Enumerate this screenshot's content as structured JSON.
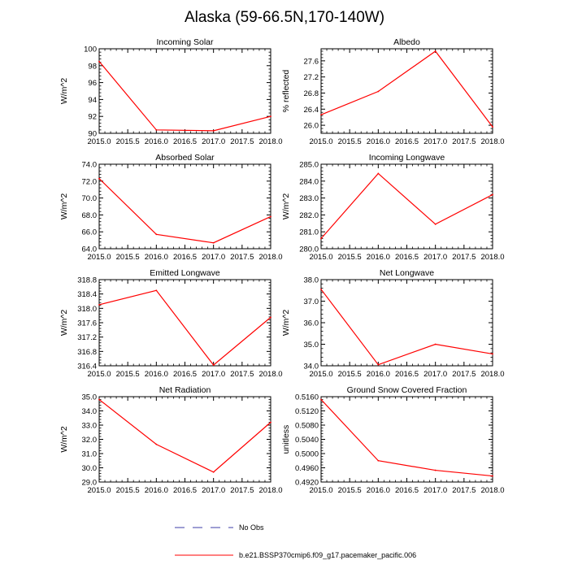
{
  "figure": {
    "title": "Alaska (59-66.5N,170-140W)",
    "legend": [
      {
        "label": "No Obs",
        "style": "dashed",
        "color": "#3d3da8"
      },
      {
        "label": "b.e21.BSSP370cmip6.f09_g17.pacemaker_pacific.006",
        "style": "solid",
        "color": "#ff0000"
      }
    ]
  },
  "chart_data": [
    {
      "type": "line",
      "title": "Incoming Solar",
      "ylabel": "W/m^2",
      "xlim": [
        2015.0,
        2018.0
      ],
      "xticks": [
        2015.0,
        2015.5,
        2016.0,
        2016.5,
        2017.0,
        2017.5,
        2018.0
      ],
      "xtick_labels": [
        "2015.0",
        "2015.5",
        "2016.0",
        "2016.5",
        "2017.0",
        "2017.5",
        "2018.0"
      ],
      "ylim": [
        90,
        100
      ],
      "yticks": [
        90,
        92,
        94,
        96,
        98,
        100
      ],
      "ytick_labels": [
        "90",
        "92",
        "94",
        "96",
        "98",
        "100"
      ],
      "x": [
        2015,
        2016,
        2017,
        2018
      ],
      "series": [
        {
          "name": "b.e21.BSSP370cmip6.f09_g17.pacemaker_pacific.006",
          "color": "#ff0000",
          "values": [
            98.5,
            90.4,
            90.3,
            92.0
          ]
        }
      ]
    },
    {
      "type": "line",
      "title": "Albedo",
      "ylabel": "% reflected",
      "xlim": [
        2015.0,
        2018.0
      ],
      "xticks": [
        2015.0,
        2015.5,
        2016.0,
        2016.5,
        2017.0,
        2017.5,
        2018.0
      ],
      "xtick_labels": [
        "2015.0",
        "2015.5",
        "2016.0",
        "2016.5",
        "2017.0",
        "2017.5",
        "2018.0"
      ],
      "ylim": [
        25.8,
        27.9
      ],
      "yticks": [
        26.0,
        26.4,
        26.8,
        27.2,
        27.6
      ],
      "ytick_labels": [
        "26.0",
        "26.4",
        "26.8",
        "27.2",
        "27.6"
      ],
      "x": [
        2015,
        2016,
        2017,
        2018
      ],
      "series": [
        {
          "name": "b.e21.BSSP370cmip6.f09_g17.pacemaker_pacific.006",
          "color": "#ff0000",
          "values": [
            26.26,
            26.84,
            27.84,
            25.96
          ]
        }
      ]
    },
    {
      "type": "line",
      "title": "Absorbed Solar",
      "ylabel": "W/m^2",
      "xlim": [
        2015.0,
        2018.0
      ],
      "xticks": [
        2015.0,
        2015.5,
        2016.0,
        2016.5,
        2017.0,
        2017.5,
        2018.0
      ],
      "xtick_labels": [
        "2015.0",
        "2015.5",
        "2016.0",
        "2016.5",
        "2017.0",
        "2017.5",
        "2018.0"
      ],
      "ylim": [
        64.0,
        74.0
      ],
      "yticks": [
        64.0,
        66.0,
        68.0,
        70.0,
        72.0,
        74.0
      ],
      "ytick_labels": [
        "64.0",
        "66.0",
        "68.0",
        "70.0",
        "72.0",
        "74.0"
      ],
      "x": [
        2015,
        2016,
        2017,
        2018
      ],
      "series": [
        {
          "name": "b.e21.BSSP370cmip6.f09_g17.pacemaker_pacific.006",
          "color": "#ff0000",
          "values": [
            72.3,
            65.7,
            64.7,
            67.8
          ]
        }
      ]
    },
    {
      "type": "line",
      "title": "Incoming Longwave",
      "ylabel": "W/m^2",
      "xlim": [
        2015.0,
        2018.0
      ],
      "xticks": [
        2015.0,
        2015.5,
        2016.0,
        2016.5,
        2017.0,
        2017.5,
        2018.0
      ],
      "xtick_labels": [
        "2015.0",
        "2015.5",
        "2016.0",
        "2016.5",
        "2017.0",
        "2017.5",
        "2018.0"
      ],
      "ylim": [
        280.0,
        285.0
      ],
      "yticks": [
        280.0,
        281.0,
        282.0,
        283.0,
        284.0,
        285.0
      ],
      "ytick_labels": [
        "280.0",
        "281.0",
        "282.0",
        "283.0",
        "284.0",
        "285.0"
      ],
      "x": [
        2015,
        2016,
        2017,
        2018
      ],
      "series": [
        {
          "name": "b.e21.BSSP370cmip6.f09_g17.pacemaker_pacific.006",
          "color": "#ff0000",
          "values": [
            280.6,
            284.45,
            281.45,
            283.2
          ]
        }
      ]
    },
    {
      "type": "line",
      "title": "Emitted Longwave",
      "ylabel": "W/m^2",
      "xlim": [
        2015.0,
        2018.0
      ],
      "xticks": [
        2015.0,
        2015.5,
        2016.0,
        2016.5,
        2017.0,
        2017.5,
        2018.0
      ],
      "xtick_labels": [
        "2015.0",
        "2015.5",
        "2016.0",
        "2016.5",
        "2017.0",
        "2017.5",
        "2018.0"
      ],
      "ylim": [
        316.4,
        318.8
      ],
      "yticks": [
        316.4,
        316.8,
        317.2,
        317.6,
        318.0,
        318.4,
        318.8
      ],
      "ytick_labels": [
        "316.4",
        "316.8",
        "317.2",
        "317.6",
        "318.0",
        "318.4",
        "318.8"
      ],
      "x": [
        2015,
        2016,
        2017,
        2018
      ],
      "series": [
        {
          "name": "b.e21.BSSP370cmip6.f09_g17.pacemaker_pacific.006",
          "color": "#ff0000",
          "values": [
            318.1,
            318.5,
            316.42,
            317.75
          ]
        }
      ]
    },
    {
      "type": "line",
      "title": "Net Longwave",
      "ylabel": "W/m^2",
      "xlim": [
        2015.0,
        2018.0
      ],
      "xticks": [
        2015.0,
        2015.5,
        2016.0,
        2016.5,
        2017.0,
        2017.5,
        2018.0
      ],
      "xtick_labels": [
        "2015.0",
        "2015.5",
        "2016.0",
        "2016.5",
        "2017.0",
        "2017.5",
        "2018.0"
      ],
      "ylim": [
        34.0,
        38.0
      ],
      "yticks": [
        34.0,
        35.0,
        36.0,
        37.0,
        38.0
      ],
      "ytick_labels": [
        "34.0",
        "35.0",
        "36.0",
        "37.0",
        "38.0"
      ],
      "x": [
        2015,
        2016,
        2017,
        2018
      ],
      "series": [
        {
          "name": "b.e21.BSSP370cmip6.f09_g17.pacemaker_pacific.006",
          "color": "#ff0000",
          "values": [
            37.55,
            34.05,
            35.0,
            34.55
          ]
        }
      ]
    },
    {
      "type": "line",
      "title": "Net Radiation",
      "ylabel": "W/m^2",
      "xlim": [
        2015.0,
        2018.0
      ],
      "xticks": [
        2015.0,
        2015.5,
        2016.0,
        2016.5,
        2017.0,
        2017.5,
        2018.0
      ],
      "xtick_labels": [
        "2015.0",
        "2015.5",
        "2016.0",
        "2016.5",
        "2017.0",
        "2017.5",
        "2018.0"
      ],
      "ylim": [
        29.0,
        35.0
      ],
      "yticks": [
        29.0,
        30.0,
        31.0,
        32.0,
        33.0,
        34.0,
        35.0
      ],
      "ytick_labels": [
        "29.0",
        "30.0",
        "31.0",
        "32.0",
        "33.0",
        "34.0",
        "35.0"
      ],
      "x": [
        2015,
        2016,
        2017,
        2018
      ],
      "series": [
        {
          "name": "b.e21.BSSP370cmip6.f09_g17.pacemaker_pacific.006",
          "color": "#ff0000",
          "values": [
            34.8,
            31.65,
            29.7,
            33.2
          ]
        }
      ]
    },
    {
      "type": "line",
      "title": "Ground Snow Covered Fraction",
      "ylabel": "unitless",
      "xlim": [
        2015.0,
        2018.0
      ],
      "xticks": [
        2015.0,
        2015.5,
        2016.0,
        2016.5,
        2017.0,
        2017.5,
        2018.0
      ],
      "xtick_labels": [
        "2015.0",
        "2015.5",
        "2016.0",
        "2016.5",
        "2017.0",
        "2017.5",
        "2018.0"
      ],
      "ylim": [
        0.492,
        0.516
      ],
      "yticks": [
        0.492,
        0.496,
        0.5,
        0.504,
        0.508,
        0.512,
        0.516
      ],
      "ytick_labels": [
        "0.4920",
        "0.4960",
        "0.5000",
        "0.5040",
        "0.5080",
        "0.5120",
        "0.5160"
      ],
      "x": [
        2015,
        2016,
        2017,
        2018
      ],
      "series": [
        {
          "name": "b.e21.BSSP370cmip6.f09_g17.pacemaker_pacific.006",
          "color": "#ff0000",
          "values": [
            0.5152,
            0.498,
            0.4953,
            0.4937
          ]
        }
      ]
    }
  ]
}
